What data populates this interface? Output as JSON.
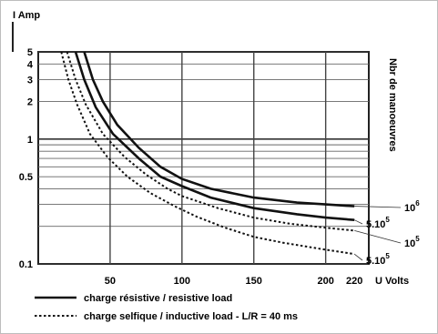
{
  "chart_data": {
    "type": "line",
    "ylabel": "I Amp",
    "xlabel": "U Volts",
    "y2label": "Nbr de manoeuvres",
    "yscale": "log",
    "ylim": [
      0.1,
      5
    ],
    "xlim": [
      0,
      230
    ],
    "yticks": [
      {
        "value": 5,
        "label": "5"
      },
      {
        "value": 4,
        "label": "4"
      },
      {
        "value": 3,
        "label": "3"
      },
      {
        "value": 2,
        "label": "2"
      },
      {
        "value": 1,
        "label": "1"
      },
      {
        "value": 0.5,
        "label": "0.5"
      },
      {
        "value": 0.1,
        "label": "0.1"
      }
    ],
    "ygrid": [
      5,
      4,
      3,
      2,
      1,
      0.9,
      0.8,
      0.7,
      0.6,
      0.5,
      0.4,
      0.3,
      0.2,
      0.1
    ],
    "xticks": [
      {
        "value": 50,
        "label": "50"
      },
      {
        "value": 100,
        "label": "100"
      },
      {
        "value": 150,
        "label": "150"
      },
      {
        "value": 200,
        "label": "200"
      },
      {
        "value": 220,
        "label": "220"
      }
    ],
    "xgrid": [
      50,
      100,
      150,
      200
    ],
    "series": [
      {
        "style": "solid",
        "ops_base": "10",
        "ops_exp": "6",
        "points": [
          [
            32,
            5
          ],
          [
            38,
            3
          ],
          [
            45,
            2
          ],
          [
            55,
            1.3
          ],
          [
            70,
            0.85
          ],
          [
            85,
            0.6
          ],
          [
            100,
            0.48
          ],
          [
            120,
            0.4
          ],
          [
            150,
            0.34
          ],
          [
            180,
            0.31
          ],
          [
            200,
            0.3
          ],
          [
            220,
            0.29
          ]
        ]
      },
      {
        "style": "solid",
        "ops_base": "5.10",
        "ops_exp": "5",
        "points": [
          [
            26,
            5
          ],
          [
            32,
            3
          ],
          [
            40,
            1.8
          ],
          [
            52,
            1.1
          ],
          [
            70,
            0.7
          ],
          [
            85,
            0.5
          ],
          [
            100,
            0.42
          ],
          [
            120,
            0.34
          ],
          [
            150,
            0.28
          ],
          [
            180,
            0.25
          ],
          [
            200,
            0.235
          ],
          [
            220,
            0.225
          ]
        ]
      },
      {
        "style": "dotted",
        "ops_base": "10",
        "ops_exp": "5",
        "points": [
          [
            20,
            5
          ],
          [
            26,
            3
          ],
          [
            33,
            1.9
          ],
          [
            45,
            1.1
          ],
          [
            60,
            0.72
          ],
          [
            75,
            0.52
          ],
          [
            90,
            0.4
          ],
          [
            100,
            0.35
          ],
          [
            125,
            0.28
          ],
          [
            150,
            0.235
          ],
          [
            175,
            0.21
          ],
          [
            200,
            0.195
          ],
          [
            220,
            0.185
          ]
        ]
      },
      {
        "style": "dotted",
        "ops_base": "5.10",
        "ops_exp": "5",
        "points": [
          [
            16,
            5
          ],
          [
            21,
            3
          ],
          [
            27,
            1.9
          ],
          [
            36,
            1.1
          ],
          [
            48,
            0.72
          ],
          [
            62,
            0.5
          ],
          [
            78,
            0.37
          ],
          [
            95,
            0.29
          ],
          [
            110,
            0.24
          ],
          [
            130,
            0.195
          ],
          [
            150,
            0.165
          ],
          [
            170,
            0.148
          ],
          [
            200,
            0.13
          ],
          [
            220,
            0.12
          ]
        ]
      }
    ],
    "legend": [
      {
        "style": "solid",
        "label": "charge résistive / resistive load"
      },
      {
        "style": "dotted",
        "label": "charge selfique / inductive load - L/R = 40 ms"
      }
    ],
    "legend_position": "bottom"
  }
}
